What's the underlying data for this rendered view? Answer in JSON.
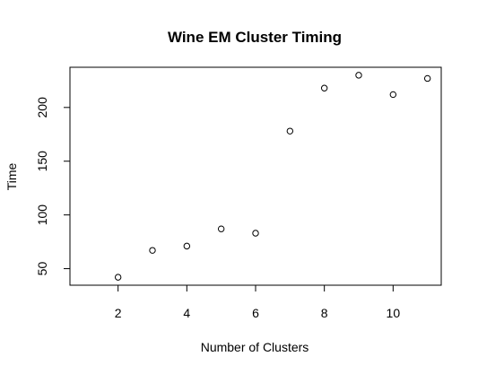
{
  "chart_data": {
    "type": "scatter",
    "title": "Wine EM Cluster Timing",
    "xlabel": "Number of Clusters",
    "ylabel": "Time",
    "x": [
      2,
      3,
      4,
      5,
      6,
      7,
      8,
      9,
      10,
      11
    ],
    "y": [
      42,
      67,
      71,
      87,
      83,
      178,
      218,
      230,
      212,
      227
    ],
    "xlim": [
      0.6,
      11.4
    ],
    "ylim": [
      34.6,
      237.4
    ],
    "xticks": [
      2,
      4,
      6,
      8,
      10
    ],
    "yticks": [
      50,
      100,
      150,
      200
    ],
    "grid": false,
    "marker": "open-circle"
  }
}
